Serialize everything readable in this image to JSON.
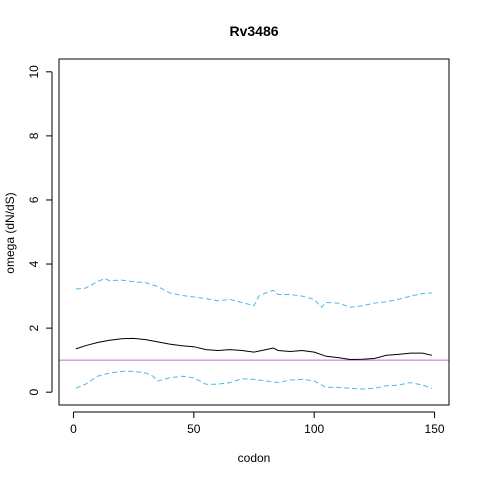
{
  "chart_data": {
    "type": "line",
    "title": "Rv3486",
    "xlabel": "codon",
    "ylabel": "omega (dN/dS)",
    "xlim": [
      -6,
      156
    ],
    "ylim": [
      -0.4,
      10.4
    ],
    "xticks": [
      0,
      50,
      100,
      150
    ],
    "yticks": [
      0,
      2,
      4,
      6,
      8,
      10
    ],
    "reference_line": {
      "y": 1,
      "color": "#cc66cc"
    },
    "series": [
      {
        "style": "solid",
        "color": "#000000",
        "x": [
          1,
          5,
          10,
          15,
          20,
          25,
          30,
          35,
          40,
          45,
          50,
          55,
          60,
          65,
          70,
          75,
          80,
          83,
          85,
          90,
          95,
          100,
          105,
          110,
          115,
          120,
          125,
          130,
          135,
          140,
          145,
          149
        ],
        "y": [
          1.35,
          1.45,
          1.55,
          1.62,
          1.67,
          1.68,
          1.64,
          1.57,
          1.5,
          1.45,
          1.42,
          1.33,
          1.3,
          1.33,
          1.3,
          1.25,
          1.33,
          1.38,
          1.3,
          1.27,
          1.3,
          1.25,
          1.12,
          1.08,
          1.02,
          1.03,
          1.05,
          1.15,
          1.18,
          1.22,
          1.22,
          1.15
        ]
      },
      {
        "style": "dashed",
        "color": "#4db8e8",
        "x": [
          1,
          5,
          10,
          13,
          15,
          20,
          25,
          30,
          35,
          40,
          45,
          50,
          55,
          60,
          65,
          70,
          75,
          77,
          80,
          83,
          85,
          90,
          95,
          100,
          103,
          105,
          110,
          115,
          120,
          125,
          130,
          135,
          140,
          145,
          149
        ],
        "y": [
          3.22,
          3.25,
          3.45,
          3.55,
          3.48,
          3.5,
          3.45,
          3.42,
          3.3,
          3.1,
          3.02,
          2.97,
          2.92,
          2.85,
          2.9,
          2.8,
          2.7,
          3.0,
          3.1,
          3.18,
          3.05,
          3.05,
          3.0,
          2.9,
          2.65,
          2.8,
          2.78,
          2.65,
          2.7,
          2.78,
          2.82,
          2.9,
          3.0,
          3.08,
          3.1
        ]
      },
      {
        "style": "dashed",
        "color": "#4db8e8",
        "x": [
          1,
          5,
          10,
          15,
          20,
          25,
          30,
          33,
          35,
          40,
          45,
          50,
          55,
          60,
          65,
          70,
          75,
          80,
          85,
          90,
          95,
          100,
          105,
          110,
          115,
          120,
          125,
          130,
          135,
          140,
          145,
          149
        ],
        "y": [
          0.12,
          0.25,
          0.5,
          0.6,
          0.65,
          0.65,
          0.6,
          0.5,
          0.35,
          0.45,
          0.5,
          0.45,
          0.25,
          0.25,
          0.3,
          0.42,
          0.4,
          0.35,
          0.3,
          0.38,
          0.4,
          0.35,
          0.15,
          0.15,
          0.12,
          0.1,
          0.12,
          0.2,
          0.22,
          0.3,
          0.22,
          0.12
        ]
      }
    ],
    "grid": false,
    "legend": "none"
  }
}
